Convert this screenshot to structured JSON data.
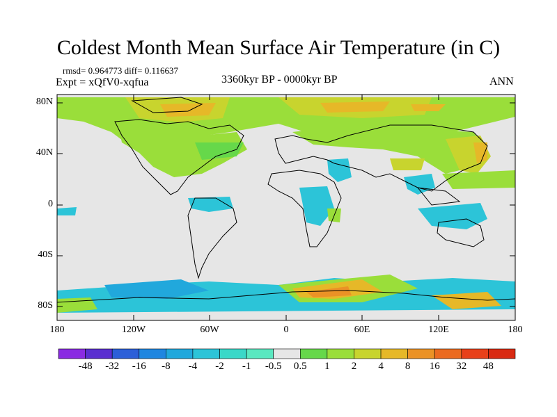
{
  "header": {
    "title": "Coldest Month Mean Surface Air Temperature (in C)",
    "stats": "rmsd= 0.964773 diff= 0.116637",
    "experiment": "Expt = xQfV0-xqfua",
    "period": "3360kyr BP - 0000kyr BP",
    "season": "ANN"
  },
  "axes": {
    "lat_labels": [
      "80N",
      "40N",
      "0",
      "40S",
      "80S"
    ],
    "lon_labels": [
      "180",
      "120W",
      "60W",
      "0",
      "60E",
      "120E",
      "180"
    ]
  },
  "colorbar": {
    "labels": [
      "-48",
      "-32",
      "-16",
      "-8",
      "-4",
      "-2",
      "-1",
      "-0.5",
      "0.5",
      "1",
      "2",
      "4",
      "8",
      "16",
      "32",
      "48"
    ],
    "colors": [
      "#8a2be2",
      "#5a2fd0",
      "#2c5fd8",
      "#1f86e0",
      "#21a8dc",
      "#2cc4d8",
      "#3ad8c8",
      "#5ae8c0",
      "#e6e6e6",
      "#66d84a",
      "#9ade3a",
      "#c8d42e",
      "#e6b828",
      "#eb9226",
      "#eb6a20",
      "#e8401a",
      "#d92a12"
    ]
  }
}
